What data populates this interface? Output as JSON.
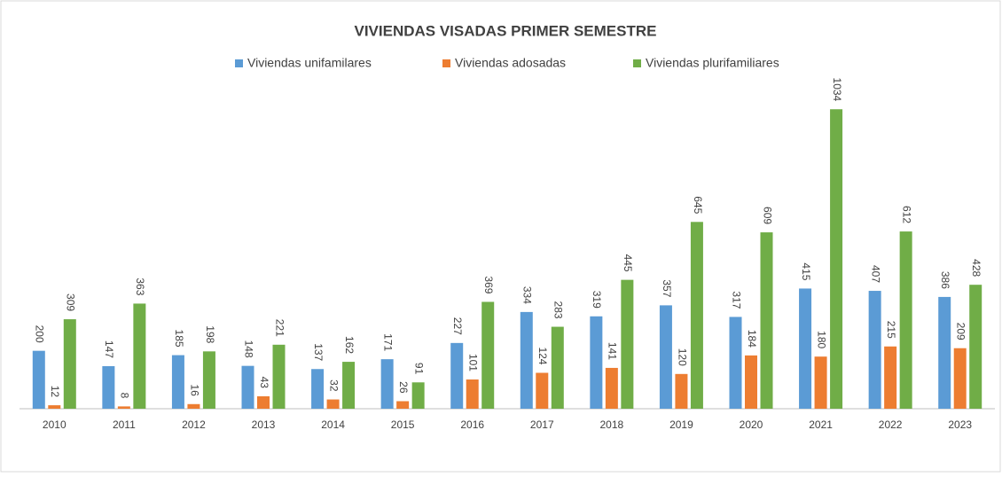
{
  "chart_data": {
    "type": "bar",
    "title": "VIVIENDAS VISADAS PRIMER SEMESTRE",
    "categories": [
      "2010",
      "2011",
      "2012",
      "2013",
      "2014",
      "2015",
      "2016",
      "2017",
      "2018",
      "2019",
      "2020",
      "2021",
      "2022",
      "2023"
    ],
    "series": [
      {
        "name": "Viviendas unifamilares",
        "color": "#5b9bd5",
        "values": [
          200,
          147,
          185,
          148,
          137,
          171,
          227,
          334,
          319,
          357,
          317,
          415,
          407,
          386
        ]
      },
      {
        "name": "Viviendas adosadas",
        "color": "#ed7d31",
        "values": [
          12,
          8,
          16,
          43,
          32,
          26,
          101,
          124,
          141,
          120,
          184,
          180,
          215,
          209
        ]
      },
      {
        "name": "Viviendas plurifamiliares",
        "color": "#70ad47",
        "values": [
          309,
          363,
          198,
          221,
          162,
          91,
          369,
          283,
          445,
          645,
          609,
          1034,
          612,
          428
        ]
      }
    ],
    "ylim": [
      0,
      1200
    ],
    "legend": "top"
  }
}
